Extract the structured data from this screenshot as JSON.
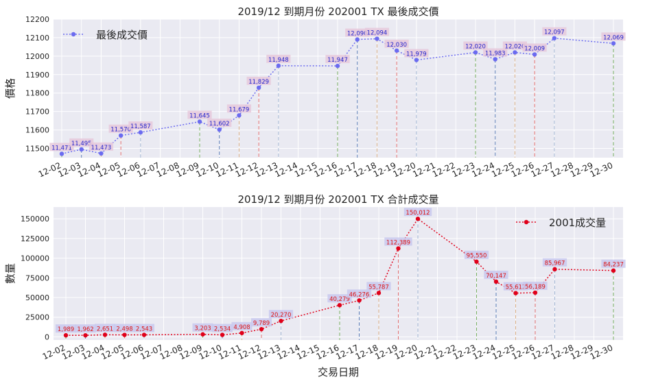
{
  "chart_data": [
    {
      "type": "line",
      "title": "2019/12 到期月份 202001 TX 最後成交價",
      "xlabel": "",
      "ylabel": "價格",
      "xtick_labels": [
        "12-02",
        "12-03",
        "12-04",
        "12-05",
        "12-06",
        "12-07",
        "12-08",
        "12-09",
        "12-10",
        "12-11",
        "12-12",
        "12-13",
        "12-14",
        "12-15",
        "12-16",
        "12-17",
        "12-18",
        "12-19",
        "12-20",
        "12-21",
        "12-22",
        "12-23",
        "12-24",
        "12-25",
        "12-26",
        "12-27",
        "12-28",
        "12-29",
        "12-30"
      ],
      "ylim": [
        11450,
        12200
      ],
      "yticks": [
        11500,
        11600,
        11700,
        11800,
        11900,
        12000,
        12100,
        12200
      ],
      "grid": true,
      "legend_position": "top-left",
      "series": [
        {
          "name": "最後成交價",
          "color": "#6b6bf0",
          "line_style": "dotted",
          "points": [
            {
              "x": "12-02",
              "y": 11471,
              "label": "11,471"
            },
            {
              "x": "12-03",
              "y": 11495,
              "label": "11,495"
            },
            {
              "x": "12-04",
              "y": 11473,
              "label": "11,473"
            },
            {
              "x": "12-05",
              "y": 11570,
              "label": "11,570"
            },
            {
              "x": "12-06",
              "y": 11587,
              "label": "11,587"
            },
            {
              "x": "12-09",
              "y": 11645,
              "label": "11,645"
            },
            {
              "x": "12-10",
              "y": 11602,
              "label": "11,602"
            },
            {
              "x": "12-11",
              "y": 11679,
              "label": "11,679"
            },
            {
              "x": "12-12",
              "y": 11829,
              "label": "11,829"
            },
            {
              "x": "12-13",
              "y": 11948,
              "label": "11,948"
            },
            {
              "x": "12-16",
              "y": 11947,
              "label": "11,947"
            },
            {
              "x": "12-17",
              "y": 12090,
              "label": "12,090"
            },
            {
              "x": "12-18",
              "y": 12094,
              "label": "12,094"
            },
            {
              "x": "12-19",
              "y": 12030,
              "label": "12,030"
            },
            {
              "x": "12-20",
              "y": 11979,
              "label": "11,979"
            },
            {
              "x": "12-23",
              "y": 12020,
              "label": "12,020"
            },
            {
              "x": "12-24",
              "y": 11983,
              "label": "11,983"
            },
            {
              "x": "12-25",
              "y": 12020,
              "label": "12,020"
            },
            {
              "x": "12-26",
              "y": 12009,
              "label": "12,009"
            },
            {
              "x": "12-27",
              "y": 12097,
              "label": "12,097"
            },
            {
              "x": "12-30",
              "y": 12069,
              "label": "12,069"
            }
          ]
        }
      ],
      "colors": {
        "label_text": "#2222cc",
        "label_bg": "#e6c9dc",
        "drop_lines": [
          "#6aa84f",
          "#4a6fb0",
          "#d9a878",
          "#e06060",
          "#9ab0d0"
        ]
      }
    },
    {
      "type": "line",
      "title": "2019/12 到期月份 202001 TX 合計成交量",
      "xlabel": "交易日期",
      "ylabel": "數量",
      "xtick_labels": [
        "12-02",
        "12-03",
        "12-04",
        "12-05",
        "12-06",
        "12-07",
        "12-08",
        "12-09",
        "12-10",
        "12-11",
        "12-12",
        "12-13",
        "12-14",
        "12-15",
        "12-16",
        "12-17",
        "12-18",
        "12-19",
        "12-20",
        "12-21",
        "12-22",
        "12-23",
        "12-24",
        "12-25",
        "12-26",
        "12-27",
        "12-28",
        "12-29",
        "12-30"
      ],
      "ylim": [
        -4000,
        165000
      ],
      "yticks": [
        0,
        25000,
        50000,
        75000,
        100000,
        125000,
        150000
      ],
      "grid": true,
      "legend_position": "top-right",
      "series": [
        {
          "name": "2001成交量",
          "color": "#e0001a",
          "line_style": "dotted",
          "points": [
            {
              "x": "12-02",
              "y": 1989,
              "label": "1,989"
            },
            {
              "x": "12-03",
              "y": 1962,
              "label": "1,962"
            },
            {
              "x": "12-04",
              "y": 2651,
              "label": "2,651"
            },
            {
              "x": "12-05",
              "y": 2498,
              "label": "2,498"
            },
            {
              "x": "12-06",
              "y": 2543,
              "label": "2,543"
            },
            {
              "x": "12-09",
              "y": 3203,
              "label": "3,203"
            },
            {
              "x": "12-10",
              "y": 2534,
              "label": "2,534"
            },
            {
              "x": "12-11",
              "y": 4908,
              "label": "4,908"
            },
            {
              "x": "12-12",
              "y": 9789,
              "label": "9,789"
            },
            {
              "x": "12-13",
              "y": 20270,
              "label": "20,270"
            },
            {
              "x": "12-16",
              "y": 40279,
              "label": "40,279"
            },
            {
              "x": "12-17",
              "y": 46276,
              "label": "46,276"
            },
            {
              "x": "12-18",
              "y": 55787,
              "label": "55,787"
            },
            {
              "x": "12-19",
              "y": 112389,
              "label": "112,389"
            },
            {
              "x": "12-20",
              "y": 150012,
              "label": "150,012"
            },
            {
              "x": "12-23",
              "y": 95550,
              "label": "95,550"
            },
            {
              "x": "12-24",
              "y": 70147,
              "label": "70,147"
            },
            {
              "x": "12-25",
              "y": 55612,
              "label": "55,612"
            },
            {
              "x": "12-26",
              "y": 56189,
              "label": "56,189"
            },
            {
              "x": "12-27",
              "y": 85967,
              "label": "85,967"
            },
            {
              "x": "12-30",
              "y": 84237,
              "label": "84,237"
            }
          ]
        }
      ],
      "colors": {
        "label_text": "#dd1111",
        "label_bg": "#c9c9ee",
        "drop_lines": [
          "#6aa84f",
          "#4a6fb0",
          "#d9a878",
          "#e06060",
          "#9ab0d0"
        ]
      }
    }
  ]
}
